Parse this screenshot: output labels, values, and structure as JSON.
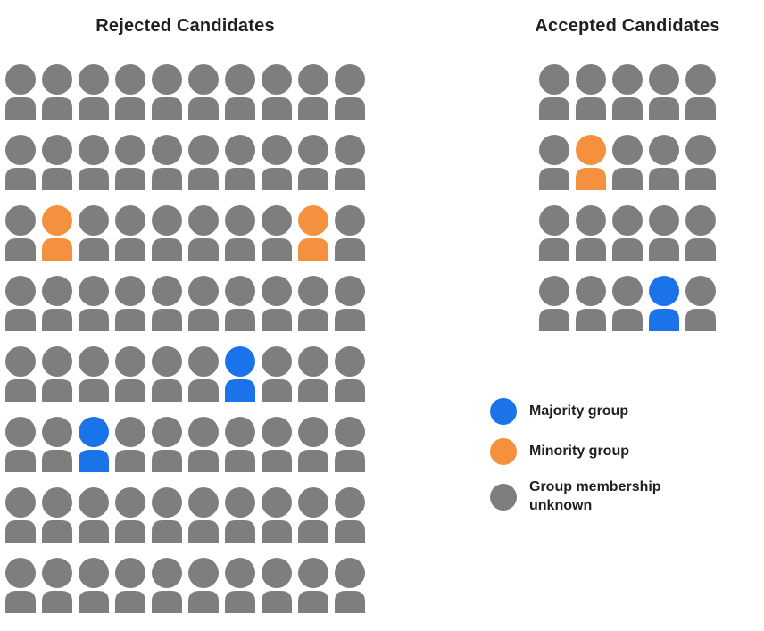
{
  "chart_data": {
    "type": "pictograph",
    "colors": {
      "majority": "#1A73E8",
      "minority": "#F5913E",
      "unknown": "#7E7E7E"
    },
    "charts": [
      {
        "id": "rejected",
        "title": "Rejected Candidates",
        "rows": 8,
        "cols": 10,
        "total": 80,
        "counts": {
          "majority": 2,
          "minority": 2,
          "unknown": 76
        },
        "highlighted": [
          {
            "row": 3,
            "col": 2,
            "group": "minority"
          },
          {
            "row": 3,
            "col": 9,
            "group": "minority"
          },
          {
            "row": 5,
            "col": 7,
            "group": "majority"
          },
          {
            "row": 6,
            "col": 3,
            "group": "majority"
          }
        ]
      },
      {
        "id": "accepted",
        "title": "Accepted Candidates",
        "rows": 4,
        "cols": 5,
        "total": 20,
        "counts": {
          "majority": 1,
          "minority": 1,
          "unknown": 18
        },
        "highlighted": [
          {
            "row": 2,
            "col": 2,
            "group": "minority"
          },
          {
            "row": 4,
            "col": 4,
            "group": "majority"
          }
        ]
      }
    ],
    "legend": [
      {
        "group": "majority",
        "label": "Majority group"
      },
      {
        "group": "minority",
        "label": "Minority group"
      },
      {
        "group": "unknown",
        "label": "Group membership unknown"
      }
    ]
  }
}
